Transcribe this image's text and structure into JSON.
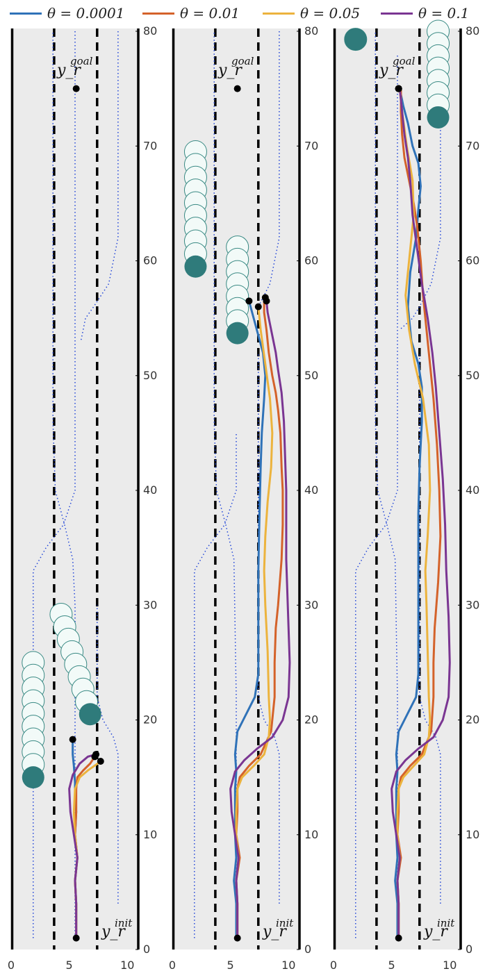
{
  "legend": [
    {
      "label": "θ = 0.0001",
      "color": "#2f72b8"
    },
    {
      "label": "θ = 0.01",
      "color": "#d4622a"
    },
    {
      "label": "θ = 0.05",
      "color": "#ecb33d"
    },
    {
      "label": "θ = 0.1",
      "color": "#7a3592"
    }
  ],
  "colors": {
    "road": "#ebebeb",
    "obstacle": "#2f7b7b",
    "obstacle_ghost": "#f2faf8",
    "obstacle_ghost_edge": "#3a8a84",
    "dotted": "#2246d8",
    "lane_dash": "#000000"
  },
  "chart_data": [
    {
      "type": "line",
      "xlim": [
        0,
        11
      ],
      "ylim": [
        0,
        80
      ],
      "xticks": [
        0,
        5,
        10
      ],
      "yticks": [
        0,
        10,
        20,
        30,
        40,
        50,
        60,
        70,
        80
      ],
      "lane_lines": [
        3.7,
        7.4
      ],
      "goal_label": "y_r^goal",
      "init_label": "y_r^init",
      "goal_point": [
        5.6,
        75
      ],
      "init_point": [
        5.6,
        1
      ],
      "obstacles": [
        {
          "x": 1.9,
          "y_start": 15.0,
          "y_end": 25.0
        },
        {
          "x": [
            4.3,
            6.8
          ],
          "y_start": 20.5,
          "y_end": 29.2
        }
      ],
      "dotted_paths": [
        {
          "x": [
            1.9,
            1.9,
            1.9,
            3.0,
            4.5,
            5.5,
            5.5,
            5.5
          ],
          "y": [
            1,
            30,
            33,
            35,
            37,
            40,
            75,
            80
          ]
        },
        {
          "x": [
            5.5,
            5.5,
            5.3,
            4.6,
            3.8,
            3.6,
            3.6
          ],
          "y": [
            1,
            30,
            34,
            37,
            40,
            46,
            80
          ]
        },
        {
          "x": [
            9.2,
            9.2,
            8.8,
            7.9,
            7.4,
            7.4
          ],
          "y": [
            4,
            17,
            18.5,
            20,
            22,
            30
          ]
        },
        {
          "x": [
            9.2,
            9.2,
            8.4,
            7.1,
            6.4,
            6.0
          ],
          "y": [
            80,
            62,
            58,
            56,
            55,
            53
          ]
        }
      ],
      "series": [
        {
          "name": "θ = 0.0001",
          "x": [
            5.6,
            5.6,
            5.5,
            5.7,
            5.5,
            5.6,
            5.5,
            5.5,
            5.4,
            5.3,
            5.3
          ],
          "y": [
            1,
            4,
            6,
            8,
            10,
            12,
            13,
            14.5,
            16,
            17,
            18.3
          ],
          "end": [
            5.3,
            18.3
          ]
        },
        {
          "name": "θ = 0.01",
          "x": [
            5.6,
            5.6,
            5.5,
            5.7,
            5.5,
            5.6,
            5.6,
            5.7,
            6.2,
            6.8,
            7.2
          ],
          "y": [
            1,
            4,
            6,
            8,
            10,
            12,
            14,
            15,
            15.6,
            16.2,
            16.8
          ],
          "end": [
            7.2,
            16.8
          ]
        },
        {
          "name": "θ = 0.05",
          "x": [
            5.6,
            5.6,
            5.5,
            5.7,
            5.5,
            5.4,
            5.5,
            5.9,
            6.6,
            7.3,
            7.7
          ],
          "y": [
            1,
            4,
            6,
            8,
            10,
            12,
            14,
            15,
            15.6,
            16.1,
            16.4
          ],
          "end": [
            7.7,
            16.4
          ]
        },
        {
          "name": "θ = 0.1",
          "x": [
            5.6,
            5.6,
            5.5,
            5.7,
            5.4,
            5.1,
            5.0,
            5.3,
            5.9,
            6.6,
            7.3
          ],
          "y": [
            1,
            4,
            6,
            8,
            10,
            12,
            14,
            15.2,
            16.2,
            16.8,
            17.0
          ],
          "end": [
            7.3,
            17.0
          ]
        }
      ]
    },
    {
      "type": "line",
      "xlim": [
        0,
        11
      ],
      "ylim": [
        0,
        80
      ],
      "xticks": [
        0,
        5,
        10
      ],
      "yticks": [
        0,
        10,
        20,
        30,
        40,
        50,
        60,
        70,
        80
      ],
      "lane_lines": [
        3.7,
        7.4
      ],
      "goal_label": "y_r^goal",
      "init_label": "y_r^init",
      "goal_point": [
        5.6,
        75
      ],
      "init_point": [
        5.6,
        1
      ],
      "obstacles": [
        {
          "x": 2.0,
          "y_start": 59.5,
          "y_end": 69.5
        },
        {
          "x": 5.6,
          "y_start": 53.7,
          "y_end": 61.2
        }
      ],
      "dotted_paths": [
        {
          "x": [
            1.9,
            1.9,
            1.9,
            3.0,
            4.5,
            5.5,
            5.5
          ],
          "y": [
            1,
            30,
            33,
            35,
            37,
            40,
            45
          ]
        },
        {
          "x": [
            5.5,
            5.5,
            5.5,
            5.3,
            4.6,
            3.8,
            3.6,
            3.6
          ],
          "y": [
            1,
            18,
            22,
            34,
            37,
            40,
            46,
            80
          ]
        },
        {
          "x": [
            9.2,
            9.2,
            8.8,
            7.9,
            7.4,
            7.4
          ],
          "y": [
            4,
            17,
            18.5,
            20,
            22,
            52
          ]
        },
        {
          "x": [
            9.2,
            9.2,
            8.4,
            7.4
          ],
          "y": [
            80,
            62,
            58,
            56
          ]
        }
      ],
      "series": [
        {
          "name": "θ = 0.0001",
          "x": [
            5.5,
            5.5,
            5.3,
            5.5,
            5.4,
            5.4,
            5.4,
            5.5,
            5.4,
            5.5,
            5.6,
            6.1,
            7.1,
            7.4,
            7.4,
            7.4,
            7.5,
            7.6,
            7.7,
            7.9,
            8.0,
            7.8,
            7.4,
            7.0,
            6.6
          ],
          "y": [
            1,
            4,
            6,
            8,
            10,
            12,
            14,
            15.5,
            17,
            18,
            19,
            20,
            22,
            24,
            28,
            33,
            38,
            42,
            45,
            48,
            50,
            52,
            53.5,
            55,
            56.5
          ],
          "end": [
            6.6,
            56.5
          ]
        },
        {
          "name": "θ = 0.01",
          "x": [
            5.6,
            5.6,
            5.5,
            5.8,
            5.5,
            5.6,
            5.6,
            5.8,
            6.6,
            7.6,
            8.5,
            8.8,
            8.8,
            8.9,
            9.1,
            9.4,
            9.5,
            9.5,
            9.4,
            9.3,
            9.1,
            8.9,
            8.6,
            8.3,
            8.1,
            7.9,
            7.9
          ],
          "y": [
            1,
            4,
            6,
            8,
            10,
            12,
            14,
            15,
            16,
            17,
            19,
            22,
            25,
            28,
            30,
            34,
            37,
            40,
            42,
            45,
            47,
            48.5,
            50,
            52,
            54,
            55.5,
            56.5
          ],
          "end": [
            8.0,
            56.8
          ]
        },
        {
          "name": "θ = 0.05",
          "x": [
            5.6,
            5.6,
            5.5,
            5.7,
            5.5,
            5.5,
            5.6,
            6.0,
            7.0,
            7.9,
            8.3,
            8.4,
            8.3,
            8.2,
            8.0,
            7.9,
            8.0,
            8.2,
            8.5,
            8.6,
            8.4,
            8.0,
            7.6,
            7.4
          ],
          "y": [
            1,
            4,
            6,
            8,
            10,
            12,
            14,
            15,
            16,
            17,
            18.5,
            20,
            22,
            26,
            30,
            33,
            36,
            39,
            42,
            45,
            48,
            51,
            54,
            56
          ],
          "end": [
            7.4,
            56.0
          ]
        },
        {
          "name": "θ = 0.1",
          "x": [
            5.6,
            5.6,
            5.5,
            5.7,
            5.4,
            5.1,
            5.0,
            5.4,
            6.2,
            7.3,
            8.6,
            9.5,
            10.0,
            10.1,
            10.0,
            9.9,
            9.8,
            9.8,
            9.8,
            9.7,
            9.6,
            9.4,
            9.1,
            8.9,
            8.5,
            8.2,
            8.1
          ],
          "y": [
            1,
            4,
            6,
            8,
            10,
            12,
            14,
            15.5,
            16.5,
            17.5,
            18.5,
            20,
            22,
            25,
            28,
            31,
            34,
            37,
            40,
            43,
            46,
            48.5,
            50.5,
            52,
            54,
            55.5,
            56.5
          ],
          "end": [
            8.1,
            56.5
          ]
        }
      ]
    },
    {
      "type": "line",
      "xlim": [
        0,
        11
      ],
      "ylim": [
        0,
        80
      ],
      "xticks": [
        0,
        5,
        10
      ],
      "yticks": [
        0,
        10,
        20,
        30,
        40,
        50,
        60,
        70,
        80
      ],
      "lane_lines": [
        3.7,
        7.4
      ],
      "goal_label": "y_r^goal",
      "init_label": "y_r^init",
      "goal_point": [
        5.6,
        75
      ],
      "init_point": [
        5.6,
        1
      ],
      "obstacles": [
        {
          "x": 1.9,
          "y_start": 79.3,
          "y_end": 79.3
        },
        {
          "x": 9.0,
          "y_start": 72.5,
          "y_end": 80.0
        }
      ],
      "dotted_paths": [
        {
          "x": [
            1.9,
            1.9,
            1.9,
            3.0,
            4.5,
            5.5,
            5.5,
            5.5
          ],
          "y": [
            1,
            30,
            33,
            35,
            37,
            40,
            45,
            78
          ]
        },
        {
          "x": [
            5.5,
            5.5,
            5.5,
            5.3,
            4.6,
            3.8,
            3.6,
            3.6
          ],
          "y": [
            1,
            18,
            22,
            34,
            37,
            40,
            46,
            80
          ]
        },
        {
          "x": [
            9.2,
            9.2,
            8.8,
            7.9,
            7.4,
            7.4
          ],
          "y": [
            4,
            17,
            18.5,
            20,
            22,
            52
          ]
        },
        {
          "x": [
            9.2,
            9.2,
            8.4,
            7.4,
            6.8,
            5.7
          ],
          "y": [
            72,
            62,
            58,
            56,
            55,
            54
          ]
        }
      ],
      "series": [
        {
          "name": "θ = 0.0001",
          "x": [
            5.5,
            5.5,
            5.3,
            5.5,
            5.4,
            5.4,
            5.4,
            5.5,
            5.4,
            5.5,
            5.6,
            6.1,
            7.1,
            7.3,
            7.3,
            7.3,
            7.3,
            7.4,
            7.6,
            7.6,
            7.3,
            6.7,
            6.4,
            6.6,
            7.1,
            7.3,
            7.5,
            7.3,
            6.8,
            6.4,
            6.0,
            5.7
          ],
          "y": [
            1,
            4,
            6,
            8,
            10,
            12,
            14,
            15.5,
            17,
            18,
            19,
            20,
            22,
            24,
            28,
            33,
            38,
            42,
            46,
            49,
            51,
            53,
            56,
            59,
            62,
            64.5,
            66.5,
            68.5,
            70,
            72,
            73.5,
            75
          ],
          "end": [
            5.6,
            75
          ]
        },
        {
          "name": "θ = 0.01",
          "x": [
            5.6,
            5.6,
            5.5,
            5.8,
            5.5,
            5.6,
            5.6,
            5.8,
            6.6,
            7.6,
            8.4,
            8.6,
            8.6,
            8.7,
            9.0,
            9.2,
            9.1,
            8.9,
            8.6,
            8.3,
            8.0,
            7.7,
            7.5,
            7.2,
            6.9,
            6.5,
            6.1,
            5.9,
            5.8,
            5.8
          ],
          "y": [
            1,
            4,
            6,
            8,
            10,
            12,
            14,
            15,
            16,
            17,
            19,
            22,
            25,
            28,
            32,
            36,
            40,
            44,
            48,
            51,
            54,
            57,
            60,
            63,
            65,
            67,
            69,
            71,
            73,
            75
          ],
          "end": [
            5.6,
            75
          ]
        },
        {
          "name": "θ = 0.05",
          "x": [
            5.6,
            5.6,
            5.5,
            5.7,
            5.5,
            5.5,
            5.6,
            6.0,
            6.9,
            7.8,
            8.2,
            8.3,
            8.2,
            8.1,
            8.0,
            7.9,
            8.1,
            8.3,
            8.2,
            7.7,
            7.0,
            6.5,
            6.2,
            6.5,
            6.9,
            6.8,
            6.3,
            5.9,
            5.7
          ],
          "y": [
            1,
            4,
            6,
            8,
            10,
            12,
            14,
            15,
            16,
            17,
            18.5,
            20,
            22,
            26,
            30,
            33,
            36,
            40,
            44,
            48,
            51,
            54,
            57,
            60,
            64,
            67,
            70,
            73,
            75
          ],
          "end": [
            5.6,
            75
          ]
        },
        {
          "name": "θ = 0.1",
          "x": [
            5.6,
            5.6,
            5.5,
            5.7,
            5.4,
            5.1,
            5.0,
            5.4,
            6.2,
            7.3,
            8.6,
            9.4,
            9.9,
            10.0,
            9.9,
            9.7,
            9.6,
            9.4,
            9.1,
            8.8,
            8.5,
            8.1,
            7.6,
            7.2,
            6.8,
            6.6,
            6.4,
            6.1,
            5.9,
            5.7
          ],
          "y": [
            1,
            4,
            6,
            8,
            10,
            12,
            14,
            15.5,
            16.5,
            17.5,
            18.5,
            20,
            22,
            25,
            29,
            33,
            37,
            41,
            45,
            49,
            52,
            55,
            58,
            61,
            64,
            67,
            69,
            71,
            73,
            75
          ],
          "end": [
            5.6,
            75
          ]
        }
      ]
    }
  ]
}
